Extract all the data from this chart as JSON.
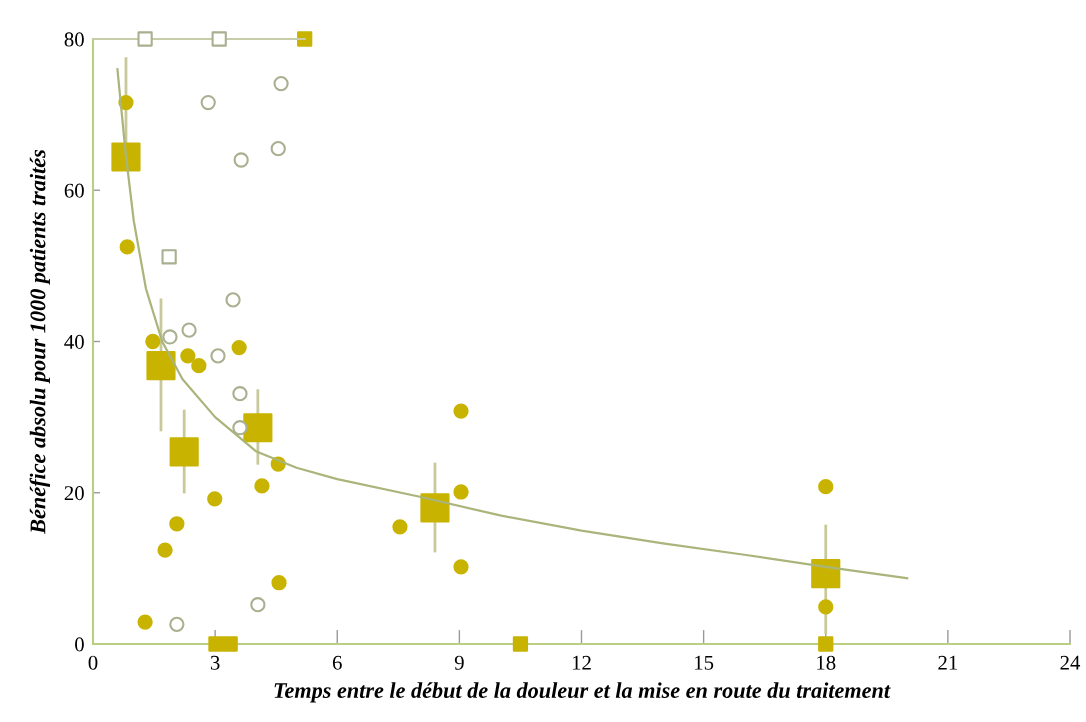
{
  "chart_data": {
    "type": "scatter",
    "xlabel": "Temps entre le début de la douleur et la mise en route du traitement",
    "ylabel": "Bénéfice absolu pour 1000 patients traités",
    "xlim": [
      0,
      24
    ],
    "xticks": [
      0,
      3,
      6,
      9,
      12,
      15,
      18,
      21,
      24
    ],
    "ylim": [
      0,
      80
    ],
    "yticks": [
      0,
      20,
      40,
      60,
      80
    ],
    "grid": false,
    "legend": false,
    "series": [
      {
        "type": "line",
        "color": "#c8cca8",
        "x": [
          0,
          5.2
        ],
        "values": [
          80,
          80
        ],
        "marker": "none"
      },
      {
        "type": "line",
        "color": "#a9b57a",
        "x": [
          0.6,
          0.8,
          1.0,
          1.3,
          1.7,
          2.2,
          3,
          4,
          5,
          6,
          8,
          10,
          12,
          14,
          16,
          18,
          20
        ],
        "values": [
          76,
          65,
          56,
          47,
          40,
          35,
          30,
          25.5,
          23.3,
          21.8,
          19.5,
          17,
          15,
          13.3,
          11.8,
          10.2,
          8.7
        ],
        "marker": "none"
      },
      {
        "color": "#c8b400",
        "marker": "circle",
        "x": [
          0.81,
          0.84,
          1.28,
          1.47,
          1.77,
          2.06,
          2.33,
          2.6,
          2.99,
          3.59,
          4.15,
          4.55,
          4.57,
          7.54,
          9.04,
          9.04,
          9.04,
          18,
          18
        ],
        "values": [
          71.6,
          52.5,
          2.9,
          40,
          12.4,
          15.9,
          38.1,
          36.8,
          19.2,
          39.2,
          20.9,
          23.8,
          8.1,
          15.5,
          30.8,
          20.1,
          10.2,
          20.8,
          4.9
        ]
      },
      {
        "color": "#a8b090",
        "marker": "circle",
        "x": [
          2.83,
          4.62,
          3.64,
          4.55,
          3.44,
          2.36,
          1.89,
          3.07,
          3.61,
          3.61,
          4.05,
          2.06
        ],
        "values": [
          71.6,
          74.1,
          64,
          65.5,
          45.5,
          41.5,
          40.6,
          38.1,
          33.1,
          28.6,
          5.2,
          2.6
        ]
      },
      {
        "color": "#a8b090",
        "marker": "square",
        "x": [
          1.87,
          1.28,
          3.1
        ],
        "values": [
          51.2,
          80,
          80
        ]
      },
      {
        "color": "#c8b400",
        "marker": "square",
        "x": [
          5.2,
          3.02,
          3.37,
          10.5,
          18
        ],
        "values": [
          80,
          0,
          0,
          0,
          0
        ]
      },
      {
        "color": "#c8b400",
        "marker": "square",
        "x": [
          0.81,
          1.67,
          2.24,
          4.05,
          8.4,
          18
        ],
        "values": [
          64.4,
          36.8,
          25.4,
          28.6,
          18,
          9.3
        ],
        "errors": [
          [
            64.4,
            77.4
          ],
          [
            28.3,
            45.5
          ],
          [
            20.1,
            30.8
          ],
          [
            23.9,
            33.5
          ],
          [
            12.3,
            23.8
          ],
          [
            1.5,
            15.6
          ]
        ]
      }
    ]
  }
}
